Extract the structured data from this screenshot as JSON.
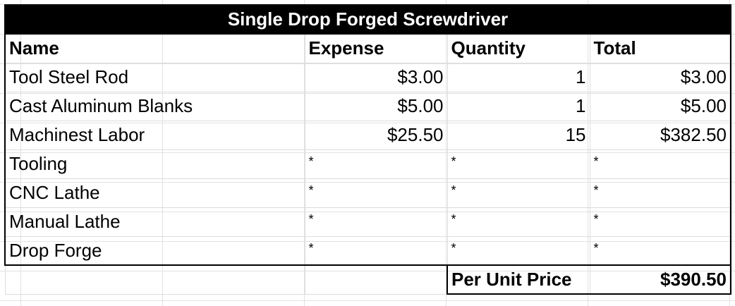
{
  "sheet": {
    "title": "Single Drop Forged Screwdriver",
    "headers": {
      "name": "Name",
      "expense": "Expense",
      "quantity": "Quantity",
      "total": "Total"
    },
    "rows": [
      {
        "name": "Tool Steel Rod",
        "expense": "$3.00",
        "quantity": "1",
        "total": "$3.00"
      },
      {
        "name": "Cast Aluminum Blanks",
        "expense": "$5.00",
        "quantity": "1",
        "total": "$5.00"
      },
      {
        "name": "Machinest Labor",
        "expense": "$25.50",
        "quantity": "15",
        "total": "$382.50"
      },
      {
        "name": "Tooling",
        "expense": "*",
        "quantity": "*",
        "total": "*"
      },
      {
        "name": "CNC Lathe",
        "expense": "*",
        "quantity": "*",
        "total": "*"
      },
      {
        "name": "Manual Lathe",
        "expense": "*",
        "quantity": "*",
        "total": "*"
      },
      {
        "name": "Drop Forge",
        "expense": "*",
        "quantity": "*",
        "total": "*"
      }
    ],
    "summary": {
      "label": "Per Unit Price",
      "value": "$390.50"
    }
  }
}
